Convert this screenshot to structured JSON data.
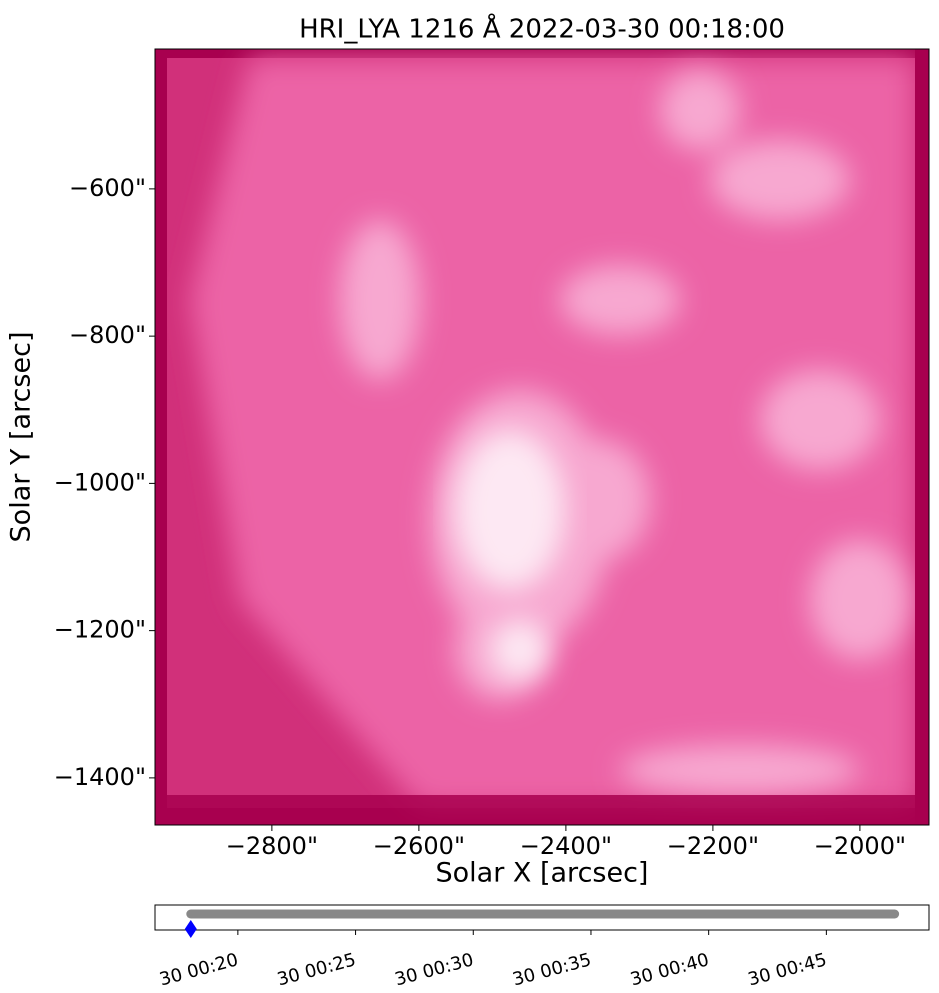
{
  "chart_data": {
    "type": "image",
    "title": "HRI_LYA 1216 Å 2022-03-30 00:18:00",
    "xlabel": "Solar X [arcsec]",
    "ylabel": "Solar Y [arcsec]",
    "xlim": [
      -2959,
      -1906
    ],
    "ylim": [
      -1464,
      -410
    ],
    "xticks": [
      {
        "value": -2800,
        "label": "−2800\""
      },
      {
        "value": -2600,
        "label": "−2600\""
      },
      {
        "value": -2400,
        "label": "−2400\""
      },
      {
        "value": -2200,
        "label": "−2200\""
      },
      {
        "value": -2000,
        "label": "−2000\""
      }
    ],
    "yticks": [
      {
        "value": -600,
        "label": "−600\""
      },
      {
        "value": -800,
        "label": "−800\""
      },
      {
        "value": -1000,
        "label": "−1000\""
      },
      {
        "value": -1200,
        "label": "−1200\""
      },
      {
        "value": -1400,
        "label": "−1400\""
      }
    ],
    "timeline": {
      "xlim": [
        16.48,
        49.36
      ],
      "xticks": [
        {
          "value": 20,
          "label": "30 00:20"
        },
        {
          "value": 25,
          "label": "30 00:25"
        },
        {
          "value": 30,
          "label": "30 00:30"
        },
        {
          "value": 35,
          "label": "30 00:35"
        },
        {
          "value": 40,
          "label": "30 00:40"
        },
        {
          "value": 45,
          "label": "30 00:45"
        }
      ],
      "range": [
        18.0,
        47.9
      ],
      "current": 18.0
    }
  }
}
